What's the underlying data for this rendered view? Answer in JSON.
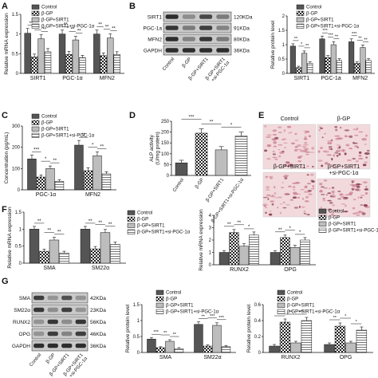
{
  "colors": {
    "control": "#555555",
    "bgp": "#2b2b2b",
    "bgp_sirt1": "#bdbdbd",
    "bgp_sirt1_si": "#efefef",
    "axis": "#111111",
    "blot_bg": "#c9c9c9",
    "band": "#1c1c1c",
    "micro_bg": "#f2d9dc",
    "micro_cell": "#c97f8e",
    "micro_dark": "#7a2d3f"
  },
  "legend4": [
    "Control",
    "β-GP",
    "β-GP+SIRT1",
    "β-GP+SIRT1+si-PGC-1α"
  ],
  "panel_labels": {
    "A": "A",
    "B": "B",
    "C": "C",
    "D": "D",
    "E": "E",
    "F": "F",
    "G": "G"
  },
  "chart_data": [
    {
      "id": "A",
      "type": "bar",
      "ylabel": "Relative mRNA expression",
      "ylim": [
        0,
        1.5
      ],
      "yticks": [
        0,
        0.5,
        1.0,
        1.5
      ],
      "categories": [
        "SIRT1",
        "PGC-1α",
        "MFN2"
      ],
      "series": [
        {
          "name": "Control",
          "values": [
            1.02,
            1.0,
            1.0
          ],
          "errors": [
            0.12,
            0.1,
            0.1
          ]
        },
        {
          "name": "β-GP",
          "values": [
            0.42,
            0.48,
            0.45
          ],
          "errors": [
            0.07,
            0.08,
            0.07
          ]
        },
        {
          "name": "β-GP+SIRT1",
          "values": [
            0.88,
            0.85,
            0.9
          ],
          "errors": [
            0.1,
            0.09,
            0.1
          ]
        },
        {
          "name": "β-GP+SIRT1+si-PGC-1α",
          "values": [
            0.55,
            0.4,
            0.48
          ],
          "errors": [
            0.08,
            0.06,
            0.07
          ]
        }
      ],
      "sig": [
        "**",
        "*",
        "**",
        "**",
        "**",
        "**",
        "**",
        "**",
        "**"
      ]
    },
    {
      "id": "B",
      "type": "bar",
      "ylabel": "Relative protein level",
      "ylim": [
        0,
        2.0
      ],
      "yticks": [
        0,
        0.5,
        1.0,
        1.5,
        2.0
      ],
      "categories": [
        "SIRT1",
        "PGC-1a",
        "MFN2"
      ],
      "series": [
        {
          "name": "Control",
          "values": [
            0.95,
            1.2,
            1.1
          ],
          "errors": [
            0.08,
            0.1,
            0.1
          ]
        },
        {
          "name": "β-GP",
          "values": [
            0.2,
            0.55,
            0.35
          ],
          "errors": [
            0.05,
            0.07,
            0.05
          ]
        },
        {
          "name": "β-GP+SIRT1",
          "values": [
            0.7,
            1.0,
            0.9
          ],
          "errors": [
            0.08,
            0.1,
            0.09
          ]
        },
        {
          "name": "β-GP+SIRT1+si-PGC-1α",
          "values": [
            0.35,
            0.45,
            0.45
          ],
          "errors": [
            0.05,
            0.06,
            0.06
          ]
        }
      ],
      "sig": [
        "**",
        "*",
        "**",
        "***",
        "***",
        "**",
        "***",
        "**",
        "**"
      ]
    },
    {
      "id": "C",
      "type": "bar",
      "ylabel": "Concentration (pg/mL)",
      "ylim": [
        0,
        300
      ],
      "yticks": [
        0,
        100,
        200,
        300
      ],
      "categories": [
        "PGC-1α",
        "MFN2"
      ],
      "series": [
        {
          "name": "Control",
          "values": [
            145,
            210
          ],
          "errors": [
            18,
            22
          ]
        },
        {
          "name": "β-GP",
          "values": [
            60,
            90
          ],
          "errors": [
            10,
            14
          ]
        },
        {
          "name": "β-GP+SIRT1",
          "values": [
            100,
            160
          ],
          "errors": [
            12,
            18
          ]
        },
        {
          "name": "β-GP+SIRT1+si-PGC-1α",
          "values": [
            40,
            75
          ],
          "errors": [
            8,
            10
          ]
        }
      ],
      "sig": [
        "***",
        "*",
        "**",
        "**",
        "*",
        "**"
      ]
    },
    {
      "id": "D",
      "type": "bar",
      "ylabel": "ALP activity\n(U/mg protein)",
      "ylim": [
        0,
        250
      ],
      "yticks": [
        0,
        50,
        100,
        150,
        200,
        250
      ],
      "categories": [
        "Control",
        "β-GP",
        "β-GP+SIRT1",
        "β-GP+SIRT1+si-PGC-1α"
      ],
      "values": [
        58,
        195,
        118,
        182
      ],
      "errors": [
        12,
        20,
        15,
        18
      ],
      "sig": [
        "***",
        "**",
        "*"
      ]
    },
    {
      "id": "F1",
      "type": "bar",
      "ylabel": "Relative mRNA expression",
      "ylim": [
        0,
        1.5
      ],
      "yticks": [
        0,
        0.5,
        1.0,
        1.5
      ],
      "categories": [
        "SMA",
        "SM22α"
      ],
      "series": [
        {
          "name": "Control",
          "values": [
            1.0,
            1.0
          ],
          "errors": [
            0.08,
            0.08
          ]
        },
        {
          "name": "β-GP",
          "values": [
            0.35,
            0.42
          ],
          "errors": [
            0.06,
            0.07
          ]
        },
        {
          "name": "β-GP+SIRT1",
          "values": [
            0.68,
            0.9
          ],
          "errors": [
            0.08,
            0.09
          ]
        },
        {
          "name": "β-GP+SIRT1+si-PGC-1α",
          "values": [
            0.3,
            0.55
          ],
          "errors": [
            0.05,
            0.07
          ]
        }
      ],
      "sig": [
        "**",
        "**",
        "**",
        "**",
        "**",
        "**"
      ]
    },
    {
      "id": "F2",
      "type": "bar",
      "ylabel": "Relative mRNA expression",
      "ylim": [
        0,
        4
      ],
      "yticks": [
        0,
        1,
        2,
        3,
        4
      ],
      "categories": [
        "RUNX2",
        "OPG"
      ],
      "series": [
        {
          "name": "Control",
          "values": [
            1.0,
            1.0
          ],
          "errors": [
            0.15,
            0.15
          ]
        },
        {
          "name": "β-GP",
          "values": [
            2.6,
            2.2
          ],
          "errors": [
            0.25,
            0.2
          ]
        },
        {
          "name": "β-GP+SIRT1",
          "values": [
            1.5,
            1.4
          ],
          "errors": [
            0.2,
            0.18
          ]
        },
        {
          "name": "β-GP+SIRT1+si-PGC-1α",
          "values": [
            2.4,
            2.0
          ],
          "errors": [
            0.25,
            0.2
          ]
        }
      ],
      "sig": [
        "**",
        "**",
        "*",
        "**",
        "*",
        "*"
      ]
    },
    {
      "id": "G1",
      "type": "bar",
      "ylabel": "Relative protein level",
      "ylim": [
        0,
        1.5
      ],
      "yticks": [
        0,
        0.5,
        1.0,
        1.5
      ],
      "categories": [
        "SMA",
        "SM22α"
      ],
      "series": [
        {
          "name": "Control",
          "values": [
            0.42,
            0.88
          ],
          "errors": [
            0.05,
            0.08
          ]
        },
        {
          "name": "β-GP",
          "values": [
            0.15,
            0.2
          ],
          "errors": [
            0.03,
            0.04
          ]
        },
        {
          "name": "β-GP+SIRT1",
          "values": [
            0.35,
            0.85
          ],
          "errors": [
            0.05,
            0.08
          ]
        },
        {
          "name": "β-GP+SIRT1+si-PGC-1α",
          "values": [
            0.12,
            0.18
          ],
          "errors": [
            0.03,
            0.04
          ]
        }
      ],
      "sig": [
        "***",
        "**",
        "**",
        "**",
        "***",
        "***"
      ]
    },
    {
      "id": "G2",
      "type": "bar",
      "ylabel": "Relative protein level",
      "ylim": [
        0,
        0.6
      ],
      "yticks": [
        0,
        0.2,
        0.4,
        0.6
      ],
      "categories": [
        "RUNX2",
        "OPG"
      ],
      "series": [
        {
          "name": "Control",
          "values": [
            0.08,
            0.1
          ],
          "errors": [
            0.02,
            0.02
          ]
        },
        {
          "name": "β-GP",
          "values": [
            0.38,
            0.33
          ],
          "errors": [
            0.04,
            0.04
          ]
        },
        {
          "name": "β-GP+SIRT1",
          "values": [
            0.12,
            0.12
          ],
          "errors": [
            0.02,
            0.02
          ]
        },
        {
          "name": "β-GP+SIRT1+si-PGC-1α",
          "values": [
            0.4,
            0.28
          ],
          "errors": [
            0.04,
            0.04
          ]
        }
      ],
      "sig": [
        "**",
        "**",
        "***",
        "**",
        "*",
        "*"
      ]
    }
  ],
  "blot_B": {
    "rows": [
      {
        "name": "SIRT1",
        "kda": "120KDa",
        "bands": [
          0.9,
          0.35,
          0.75,
          0.45
        ]
      },
      {
        "name": "PGC-1a",
        "kda": "91KDa",
        "bands": [
          0.85,
          0.45,
          0.8,
          0.4
        ]
      },
      {
        "name": "MFN2",
        "kda": "80KDa",
        "bands": [
          0.9,
          0.4,
          0.85,
          0.45
        ]
      },
      {
        "name": "GAPDH",
        "kda": "36KDa",
        "bands": [
          0.9,
          0.9,
          0.9,
          0.9
        ]
      }
    ],
    "lanes": [
      "Control",
      "β-GP",
      "β-GP+SIRT1",
      "β-GP+SIRT1\n+si-PGC-1α"
    ]
  },
  "blot_G": {
    "rows": [
      {
        "name": "SMA",
        "kda": "42KDa",
        "bands": [
          0.8,
          0.3,
          0.7,
          0.3
        ]
      },
      {
        "name": "SM22α",
        "kda": "23KDa",
        "bands": [
          0.85,
          0.35,
          0.8,
          0.3
        ]
      },
      {
        "name": "RUNX2",
        "kda": "56KDa",
        "bands": [
          0.3,
          0.85,
          0.35,
          0.85
        ]
      },
      {
        "name": "OPG",
        "kda": "46KDa",
        "bands": [
          0.3,
          0.8,
          0.4,
          0.8
        ]
      },
      {
        "name": "GAPDH",
        "kda": "36KDa",
        "bands": [
          0.9,
          0.9,
          0.9,
          0.9
        ]
      }
    ],
    "lanes": [
      "Control",
      "β-GP",
      "β-GP+SIRT1",
      "β-GP+SIRT1\n+si-PGC-1α"
    ]
  },
  "micro": [
    "Control",
    "β-GP",
    "β-GP+SIRT1",
    "β-GP+SIRT1\n+si-PGC-1α"
  ]
}
